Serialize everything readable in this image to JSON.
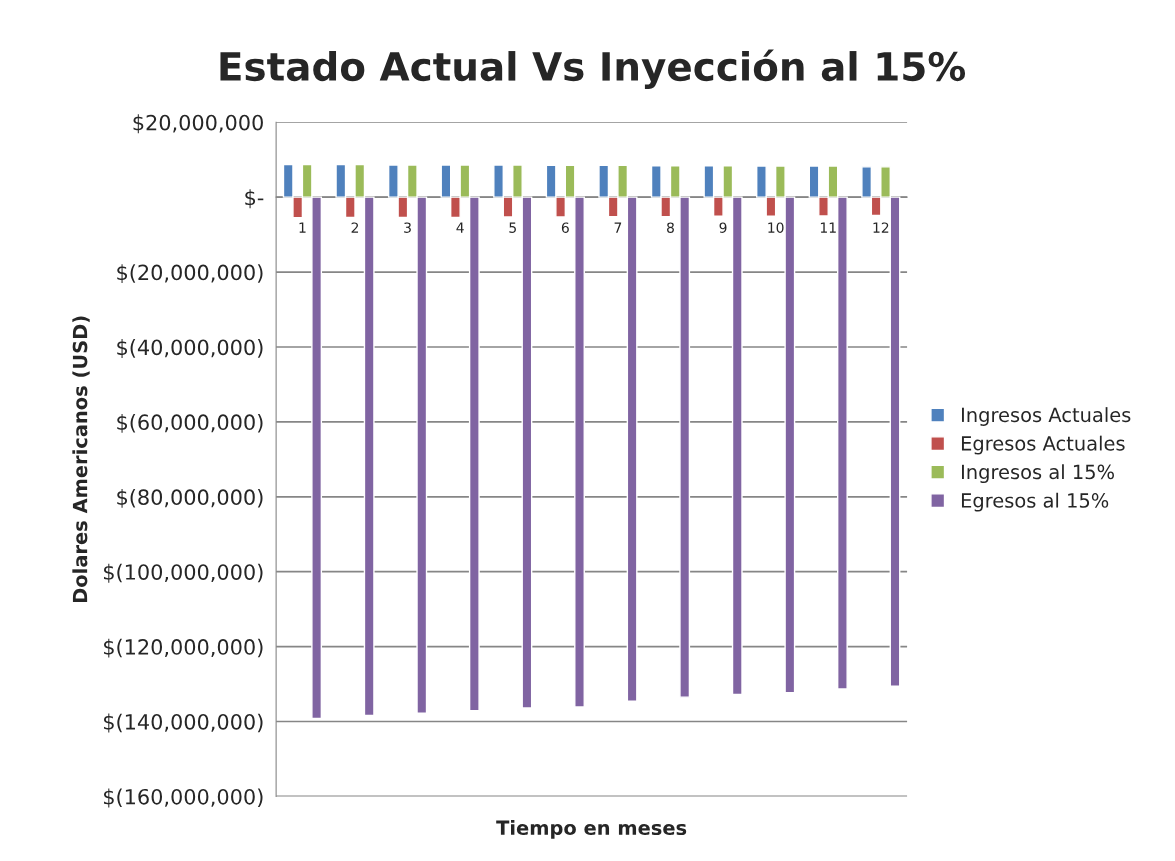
{
  "chart_data": {
    "type": "bar",
    "title": "Estado Actual Vs Inyección al 15%",
    "xlabel": "Tiempo en meses",
    "ylabel": "Dolares Americanos (USD)",
    "categories": [
      "1",
      "2",
      "3",
      "4",
      "5",
      "6",
      "7",
      "8",
      "9",
      "10",
      "11",
      "12"
    ],
    "series": [
      {
        "name": "Ingresos Actuales",
        "color": "#4f81bd",
        "values": [
          8700000,
          8700000,
          8600000,
          8600000,
          8600000,
          8500000,
          8500000,
          8400000,
          8400000,
          8300000,
          8300000,
          8100000
        ]
      },
      {
        "name": "Egresos Actuales",
        "color": "#c0504d",
        "values": [
          -5500000,
          -5400000,
          -5400000,
          -5400000,
          -5300000,
          -5300000,
          -5200000,
          -5200000,
          -5100000,
          -5100000,
          -5000000,
          -4900000
        ]
      },
      {
        "name": "Ingresos al 15%",
        "color": "#9bbb59",
        "values": [
          8700000,
          8700000,
          8600000,
          8600000,
          8600000,
          8500000,
          8500000,
          8400000,
          8400000,
          8300000,
          8300000,
          8100000
        ]
      },
      {
        "name": "Egresos al 15%",
        "color": "#8064a2",
        "values": [
          -139200000,
          -138400000,
          -137800000,
          -137100000,
          -136400000,
          -136100000,
          -134600000,
          -133500000,
          -132800000,
          -132300000,
          -131300000,
          -130600000
        ]
      }
    ],
    "ylim": [
      -160000000,
      20000000
    ],
    "yticks": [
      {
        "value": -160000000,
        "label": "$(160,000,000)"
      },
      {
        "value": -140000000,
        "label": "$(140,000,000)"
      },
      {
        "value": -120000000,
        "label": "$(120,000,000)"
      },
      {
        "value": -100000000,
        "label": "$(100,000,000)"
      },
      {
        "value": -80000000,
        "label": "$(80,000,000)"
      },
      {
        "value": -60000000,
        "label": "$(60,000,000)"
      },
      {
        "value": -40000000,
        "label": "$(40,000,000)"
      },
      {
        "value": -20000000,
        "label": "$(20,000,000)"
      },
      {
        "value": 0,
        "label": "$-"
      },
      {
        "value": 20000000,
        "label": "$20,000,000"
      }
    ],
    "grid": "y",
    "legend": "right"
  }
}
